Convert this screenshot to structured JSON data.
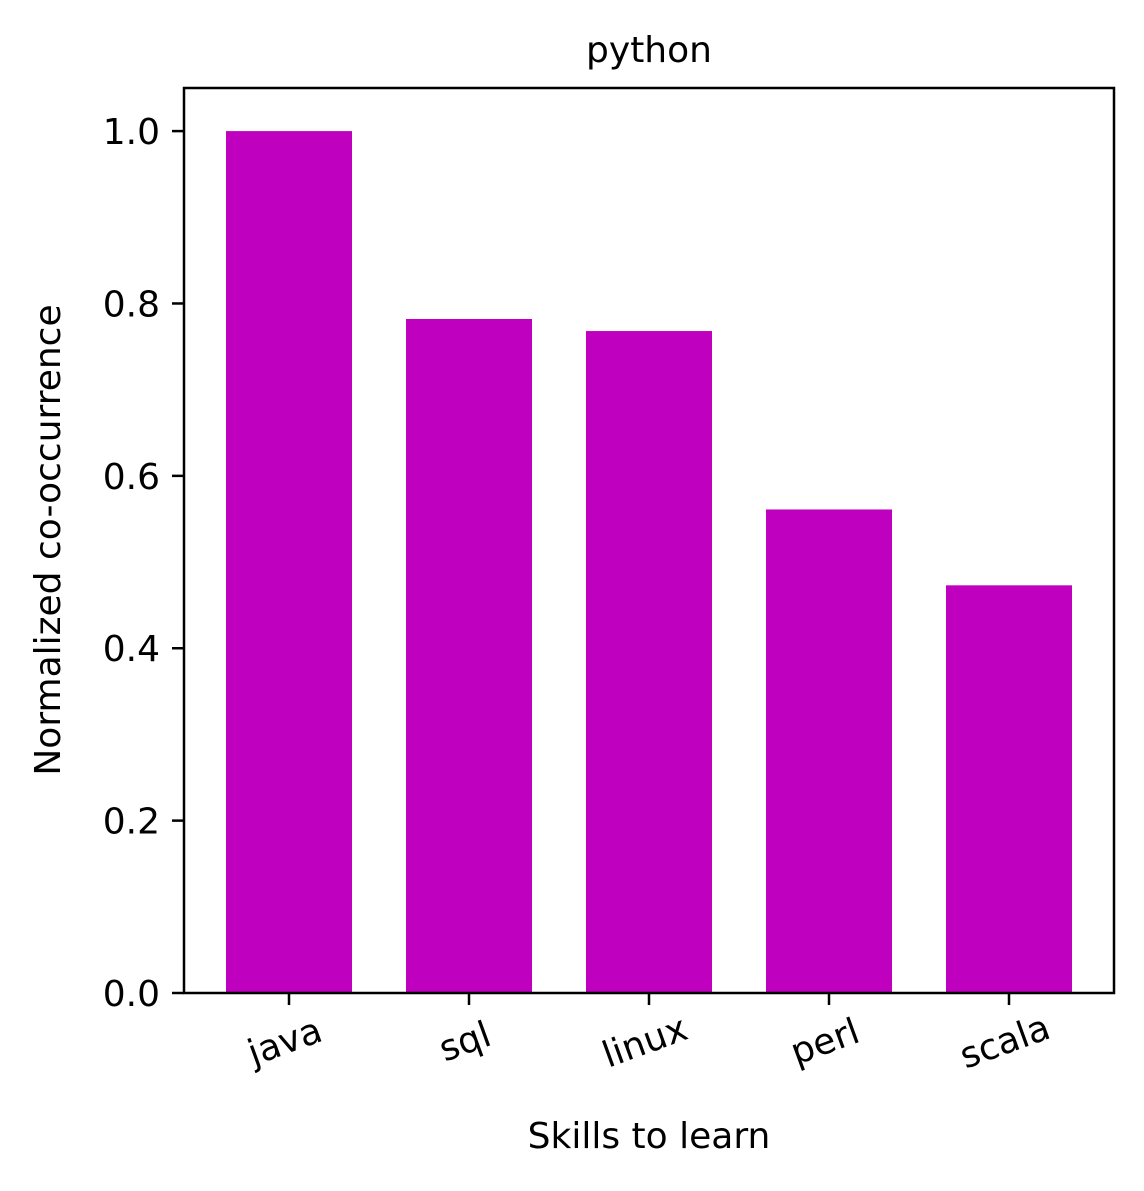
{
  "chart_data": {
    "type": "bar",
    "title": "python",
    "xlabel": "Skills to learn",
    "ylabel": "Normalized co-occurrence",
    "categories": [
      "java",
      "sql",
      "linux",
      "perl",
      "scala"
    ],
    "values": [
      1.0,
      0.782,
      0.768,
      0.561,
      0.473
    ],
    "ylim": [
      0,
      1.05
    ],
    "yticks": [
      "0.0",
      "0.2",
      "0.4",
      "0.6",
      "0.8",
      "1.0"
    ],
    "bar_color": "#bf00bf",
    "grid": false,
    "legend": "none"
  }
}
